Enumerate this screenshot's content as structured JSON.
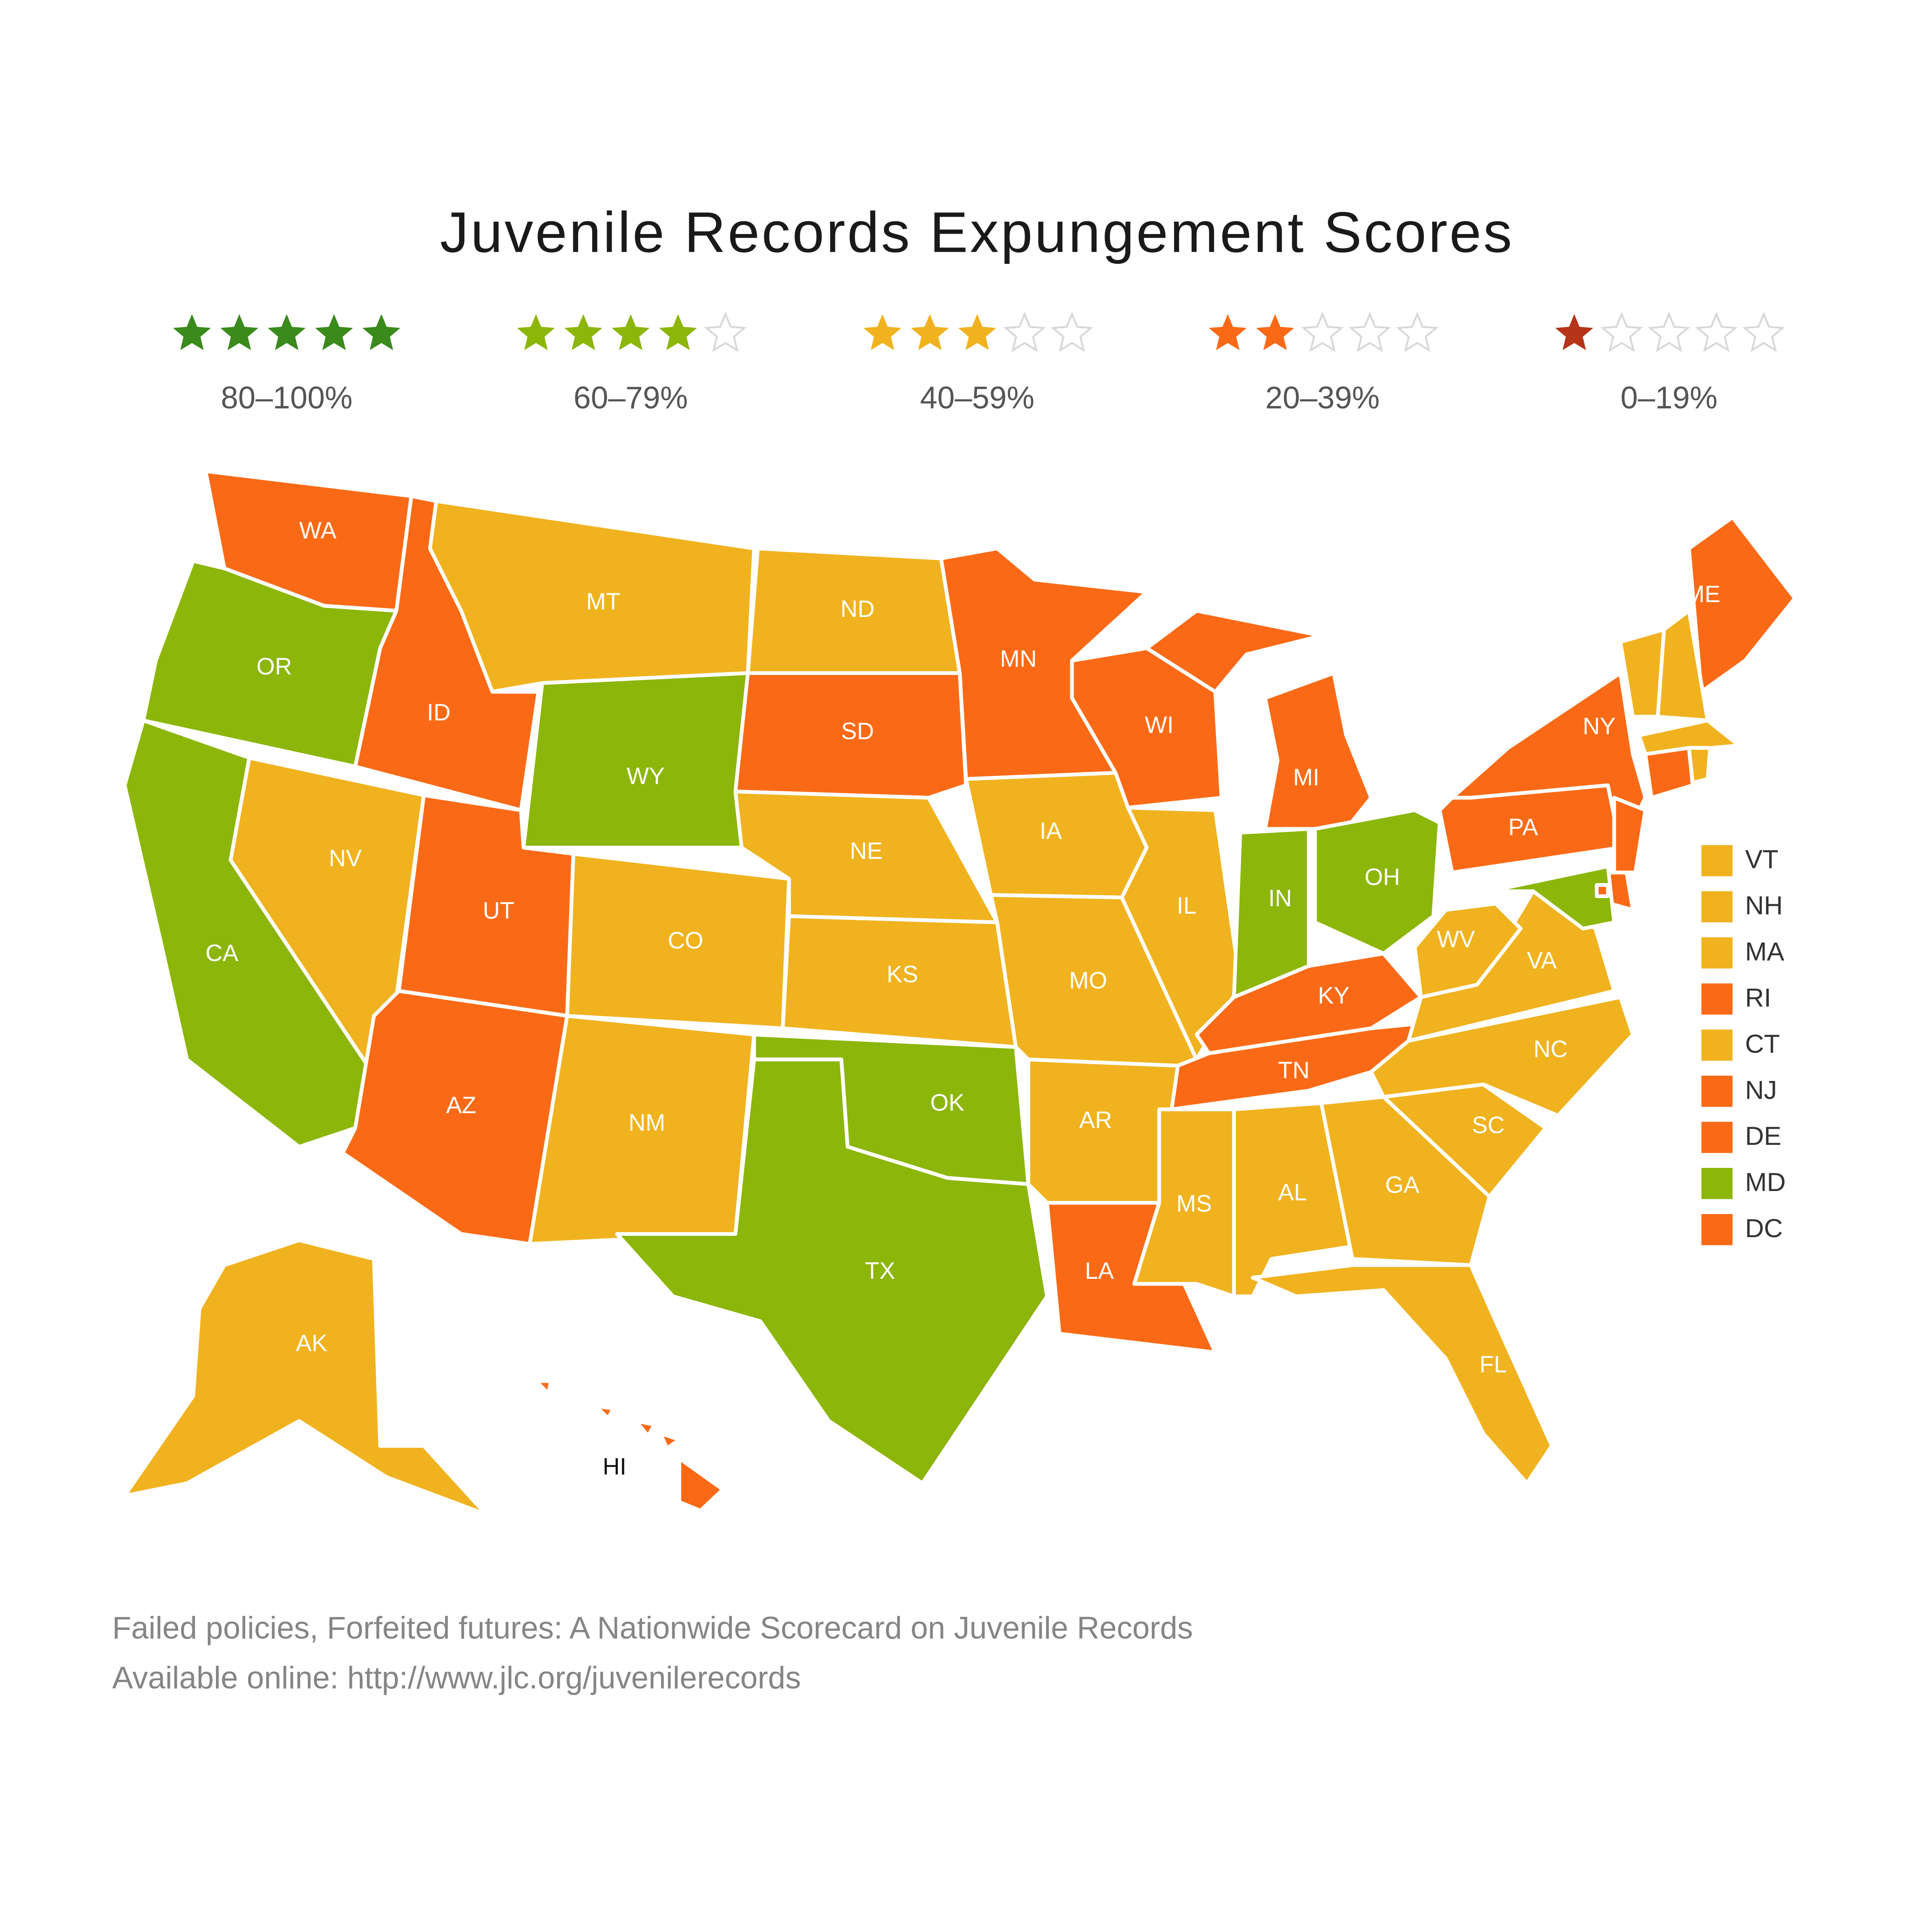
{
  "title": "Juvenile Records Expungement Scores",
  "legend": [
    {
      "stars": 5,
      "label": "80–100%",
      "color": "#3a8a1c"
    },
    {
      "stars": 4,
      "label": "60–79%",
      "color": "#8cb60a"
    },
    {
      "stars": 3,
      "label": "40–59%",
      "color": "#f0b21e"
    },
    {
      "stars": 2,
      "label": "20–39%",
      "color": "#fa6a16"
    },
    {
      "stars": 1,
      "label": "0–19%",
      "color": "#b5341a"
    }
  ],
  "states": [
    {
      "abbr": "WA",
      "rating": 2
    },
    {
      "abbr": "OR",
      "rating": 4
    },
    {
      "abbr": "CA",
      "rating": 4
    },
    {
      "abbr": "ID",
      "rating": 2
    },
    {
      "abbr": "NV",
      "rating": 3
    },
    {
      "abbr": "MT",
      "rating": 3
    },
    {
      "abbr": "WY",
      "rating": 4
    },
    {
      "abbr": "UT",
      "rating": 2
    },
    {
      "abbr": "AZ",
      "rating": 2
    },
    {
      "abbr": "CO",
      "rating": 3
    },
    {
      "abbr": "NM",
      "rating": 3
    },
    {
      "abbr": "ND",
      "rating": 3
    },
    {
      "abbr": "SD",
      "rating": 2
    },
    {
      "abbr": "NE",
      "rating": 3
    },
    {
      "abbr": "KS",
      "rating": 3
    },
    {
      "abbr": "OK",
      "rating": 4
    },
    {
      "abbr": "TX",
      "rating": 4
    },
    {
      "abbr": "MN",
      "rating": 2
    },
    {
      "abbr": "IA",
      "rating": 3
    },
    {
      "abbr": "MO",
      "rating": 3
    },
    {
      "abbr": "AR",
      "rating": 3
    },
    {
      "abbr": "LA",
      "rating": 2
    },
    {
      "abbr": "WI",
      "rating": 2
    },
    {
      "abbr": "IL",
      "rating": 3
    },
    {
      "abbr": "MI",
      "rating": 2
    },
    {
      "abbr": "IN",
      "rating": 4
    },
    {
      "abbr": "OH",
      "rating": 4
    },
    {
      "abbr": "KY",
      "rating": 2
    },
    {
      "abbr": "TN",
      "rating": 2
    },
    {
      "abbr": "MS",
      "rating": 3
    },
    {
      "abbr": "AL",
      "rating": 3
    },
    {
      "abbr": "GA",
      "rating": 3
    },
    {
      "abbr": "FL",
      "rating": 3
    },
    {
      "abbr": "SC",
      "rating": 3
    },
    {
      "abbr": "NC",
      "rating": 3
    },
    {
      "abbr": "VA",
      "rating": 3
    },
    {
      "abbr": "WV",
      "rating": 3
    },
    {
      "abbr": "PA",
      "rating": 2
    },
    {
      "abbr": "NY",
      "rating": 2
    },
    {
      "abbr": "ME",
      "rating": 2
    },
    {
      "abbr": "VT",
      "rating": 3
    },
    {
      "abbr": "NH",
      "rating": 3
    },
    {
      "abbr": "MA",
      "rating": 3
    },
    {
      "abbr": "RI",
      "rating": 2
    },
    {
      "abbr": "CT",
      "rating": 3
    },
    {
      "abbr": "NJ",
      "rating": 2
    },
    {
      "abbr": "DE",
      "rating": 2
    },
    {
      "abbr": "MD",
      "rating": 4
    },
    {
      "abbr": "DC",
      "rating": 2
    },
    {
      "abbr": "AK",
      "rating": 3
    },
    {
      "abbr": "HI",
      "rating": 2
    }
  ],
  "footer": [
    "Failed policies, Forfeited futures: A Nationwide Scorecard on Juvenile Records",
    "Available online: http://www.jlc.org/juvenilerecords"
  ]
}
